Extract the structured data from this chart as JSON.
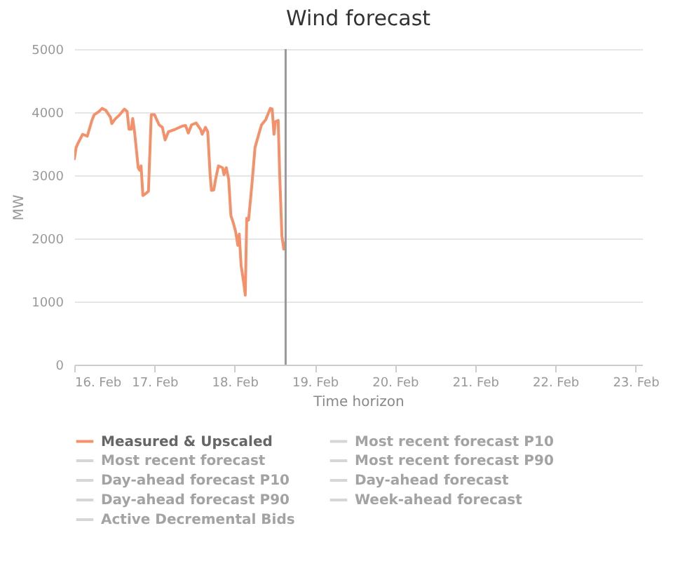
{
  "chart_data": {
    "type": "line",
    "title": "Wind forecast",
    "xlabel": "Time horizon",
    "ylabel": "MW",
    "xlim": [
      "--02-16",
      "--02-23T02:00"
    ],
    "xticks": [
      {
        "value": "--02-16",
        "label": "16. Feb"
      },
      {
        "value": "--02-17",
        "label": "17. Feb"
      },
      {
        "value": "--02-18",
        "label": "18. Feb"
      },
      {
        "value": "--02-19",
        "label": "19. Feb"
      },
      {
        "value": "--02-20",
        "label": "20. Feb"
      },
      {
        "value": "--02-21",
        "label": "21. Feb"
      },
      {
        "value": "--02-22",
        "label": "22. Feb"
      },
      {
        "value": "--02-23",
        "label": "23. Feb"
      }
    ],
    "ylim": [
      0,
      5000
    ],
    "yticks": [
      0,
      1000,
      2000,
      3000,
      4000,
      5000
    ],
    "grid": "y",
    "legend": "bottom",
    "ref_lines": [
      {
        "axis": "x",
        "value": "--02-18T15:16",
        "color": "#999999"
      }
    ],
    "series": [
      {
        "name": "Measured & Upscaled",
        "color": "#f4916b",
        "x": [
          "--02-16T00:00",
          "--02-16T00:33",
          "--02-16T01:07",
          "--02-16T02:30",
          "--02-16T03:53",
          "--02-16T05:16",
          "--02-16T05:58",
          "--02-16T07:21",
          "--02-16T08:19",
          "--02-16T09:26",
          "--02-16T10:49",
          "--02-16T11:14",
          "--02-16T12:12",
          "--02-16T13:36",
          "--02-16T14:59",
          "--02-16T15:49",
          "--02-16T16:22",
          "--02-16T17:04",
          "--02-16T17:29",
          "--02-16T18:02",
          "--02-16T19:08",
          "--02-16T19:34",
          "--02-16T19:59",
          "--02-16T20:32",
          "--02-16T21:38",
          "--02-16T22:12",
          "--02-16T23:02",
          "--02-17T00:00",
          "--02-17T01:23",
          "--02-17T02:22",
          "--02-17T03:11",
          "--02-17T04:10",
          "--02-17T06:14",
          "--02-17T08:19",
          "--02-17T09:18",
          "--02-17T10:08",
          "--02-17T11:06",
          "--02-17T12:29",
          "--02-17T13:52",
          "--02-17T14:17",
          "--02-17T15:16",
          "--02-17T15:57",
          "--02-17T16:39",
          "--02-17T17:04",
          "--02-17T17:46",
          "--02-17T18:19",
          "--02-17T19:09",
          "--02-17T20:23",
          "--02-17T20:49",
          "--02-17T21:30",
          "--02-17T22:12",
          "--02-17T22:53",
          "--02-17T23:35",
          "--02-18T00:17",
          "--02-18T00:58",
          "--02-18T01:23",
          "--02-18T01:56",
          "--02-18T02:46",
          "--02-18T03:11",
          "--02-18T03:37",
          "--02-18T04:10",
          "--02-18T05:08",
          "--02-18T06:06",
          "--02-18T07:13",
          "--02-18T08:03",
          "--02-18T09:18",
          "--02-18T10:41",
          "--02-18T11:14",
          "--02-18T11:47",
          "--02-18T12:12",
          "--02-18T13:02",
          "--02-18T13:28",
          "--02-18T14:09",
          "--02-18T14:42",
          "--02-18T15:07"
        ],
        "values": [
          3260,
          3440,
          3510,
          3650,
          3620,
          3870,
          3960,
          4010,
          4060,
          4030,
          3920,
          3820,
          3890,
          3960,
          4050,
          4010,
          3730,
          3730,
          3900,
          3690,
          3120,
          3080,
          3150,
          2680,
          2720,
          2750,
          3960,
          3960,
          3800,
          3760,
          3560,
          3690,
          3730,
          3780,
          3790,
          3670,
          3800,
          3830,
          3720,
          3650,
          3760,
          3690,
          3010,
          2760,
          2770,
          2940,
          3150,
          3120,
          3010,
          3120,
          2940,
          2360,
          2250,
          2110,
          1890,
          2070,
          1570,
          1280,
          1100,
          2320,
          2290,
          2830,
          3440,
          3650,
          3800,
          3880,
          4060,
          4050,
          3650,
          3850,
          3870,
          3040,
          2040,
          1830,
          1930
        ]
      },
      {
        "name": "Most recent forecast",
        "color": "#d6d6d6"
      },
      {
        "name": "Day-ahead forecast P10",
        "color": "#d6d6d6"
      },
      {
        "name": "Day-ahead forecast P90",
        "color": "#d6d6d6"
      },
      {
        "name": "Active Decremental Bids",
        "color": "#d6d6d6"
      },
      {
        "name": "Most recent forecast P10",
        "color": "#d6d6d6"
      },
      {
        "name": "Most recent forecast P90",
        "color": "#d6d6d6"
      },
      {
        "name": "Day-ahead forecast",
        "color": "#d6d6d6"
      },
      {
        "name": "Week-ahead forecast",
        "color": "#d6d6d6"
      }
    ]
  }
}
